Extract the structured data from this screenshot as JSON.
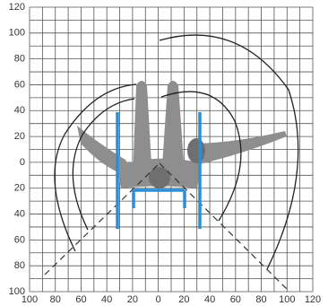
{
  "axes": {
    "y_labels": [
      "120",
      "100",
      "80",
      "60",
      "40",
      "20",
      "0",
      "20",
      "40",
      "60",
      "80",
      "100"
    ],
    "x_labels": [
      "100",
      "80",
      "60",
      "40",
      "20",
      "0",
      "20",
      "40",
      "60",
      "80",
      "100",
      "120"
    ]
  }
}
